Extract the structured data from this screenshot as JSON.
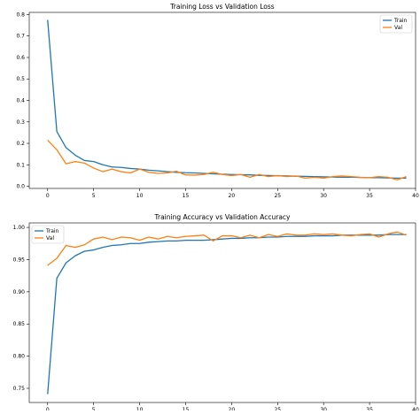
{
  "chart_data": [
    {
      "type": "line",
      "title": "Training Loss vs Validation Loss",
      "xlabel": "",
      "ylabel": "",
      "xlim": [
        -2,
        40
      ],
      "ylim": [
        -0.01,
        0.81
      ],
      "xticks": [
        0,
        5,
        10,
        15,
        20,
        25,
        30,
        35,
        40
      ],
      "yticks": [
        0.0,
        0.1,
        0.2,
        0.3,
        0.4,
        0.5,
        0.6,
        0.7,
        0.8
      ],
      "ytick_labels": [
        "0.0",
        "0.1",
        "0.2",
        "0.3",
        "0.4",
        "0.5",
        "0.6",
        "0.7",
        "0.8"
      ],
      "grid": false,
      "legend_position": "top-right",
      "x": [
        0,
        1,
        2,
        3,
        4,
        5,
        6,
        7,
        8,
        9,
        10,
        11,
        12,
        13,
        14,
        15,
        16,
        17,
        18,
        19,
        20,
        21,
        22,
        23,
        24,
        25,
        26,
        27,
        28,
        29,
        30,
        31,
        32,
        33,
        34,
        35,
        36,
        37,
        38,
        39
      ],
      "series": [
        {
          "name": "Train",
          "color": "#1f77b4",
          "values": [
            0.775,
            0.255,
            0.18,
            0.145,
            0.12,
            0.115,
            0.1,
            0.09,
            0.088,
            0.083,
            0.08,
            0.075,
            0.072,
            0.068,
            0.065,
            0.063,
            0.062,
            0.06,
            0.058,
            0.056,
            0.055,
            0.054,
            0.053,
            0.051,
            0.05,
            0.049,
            0.048,
            0.047,
            0.046,
            0.045,
            0.044,
            0.043,
            0.042,
            0.042,
            0.041,
            0.04,
            0.04,
            0.039,
            0.038,
            0.038
          ]
        },
        {
          "name": "Val",
          "color": "#ff7f0e",
          "values": [
            0.215,
            0.17,
            0.105,
            0.115,
            0.108,
            0.085,
            0.068,
            0.08,
            0.068,
            0.062,
            0.08,
            0.065,
            0.06,
            0.062,
            0.07,
            0.053,
            0.052,
            0.055,
            0.065,
            0.055,
            0.05,
            0.055,
            0.042,
            0.055,
            0.045,
            0.05,
            0.045,
            0.048,
            0.038,
            0.042,
            0.038,
            0.045,
            0.048,
            0.045,
            0.042,
            0.04,
            0.045,
            0.042,
            0.03,
            0.045
          ]
        }
      ]
    },
    {
      "type": "line",
      "title": "Training Accuracy vs Validation Accuracy",
      "xlabel": "",
      "ylabel": "",
      "xlim": [
        -2,
        40
      ],
      "ylim": [
        0.728,
        1.007
      ],
      "xticks": [
        0,
        5,
        10,
        15,
        20,
        25,
        30,
        35,
        40
      ],
      "yticks": [
        0.75,
        0.8,
        0.85,
        0.9,
        0.95,
        1.0
      ],
      "ytick_labels": [
        "0.75",
        "0.80",
        "0.85",
        "0.90",
        "0.95",
        "1.00"
      ],
      "grid": false,
      "legend_position": "top-left",
      "x": [
        0,
        1,
        2,
        3,
        4,
        5,
        6,
        7,
        8,
        9,
        10,
        11,
        12,
        13,
        14,
        15,
        16,
        17,
        18,
        19,
        20,
        21,
        22,
        23,
        24,
        25,
        26,
        27,
        28,
        29,
        30,
        31,
        32,
        33,
        34,
        35,
        36,
        37,
        38,
        39
      ],
      "series": [
        {
          "name": "Train",
          "color": "#1f77b4",
          "values": [
            0.741,
            0.921,
            0.945,
            0.956,
            0.963,
            0.965,
            0.969,
            0.972,
            0.973,
            0.975,
            0.975,
            0.977,
            0.978,
            0.979,
            0.979,
            0.98,
            0.98,
            0.98,
            0.981,
            0.982,
            0.983,
            0.983,
            0.984,
            0.984,
            0.985,
            0.985,
            0.986,
            0.986,
            0.986,
            0.987,
            0.987,
            0.987,
            0.988,
            0.988,
            0.988,
            0.988,
            0.988,
            0.989,
            0.989,
            0.989
          ]
        },
        {
          "name": "Val",
          "color": "#ff7f0e",
          "values": [
            0.941,
            0.952,
            0.972,
            0.969,
            0.973,
            0.982,
            0.985,
            0.981,
            0.985,
            0.984,
            0.98,
            0.985,
            0.982,
            0.986,
            0.984,
            0.986,
            0.987,
            0.988,
            0.979,
            0.987,
            0.987,
            0.984,
            0.988,
            0.984,
            0.989,
            0.986,
            0.99,
            0.988,
            0.988,
            0.99,
            0.989,
            0.99,
            0.988,
            0.987,
            0.989,
            0.99,
            0.985,
            0.99,
            0.993,
            0.988
          ]
        }
      ]
    }
  ]
}
